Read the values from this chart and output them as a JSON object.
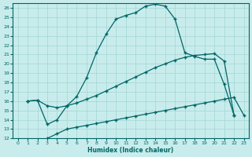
{
  "xlabel": "Humidex (Indice chaleur)",
  "ylabel": "",
  "bg_color": "#c8ecec",
  "line_color": "#006666",
  "grid_color": "#a8d8d8",
  "xlim": [
    -0.5,
    23.5
  ],
  "ylim": [
    12,
    26.5
  ],
  "xticks": [
    0,
    1,
    2,
    3,
    4,
    5,
    6,
    7,
    8,
    9,
    10,
    11,
    12,
    13,
    14,
    15,
    16,
    17,
    18,
    19,
    20,
    21,
    22,
    23
  ],
  "yticks": [
    12,
    13,
    14,
    15,
    16,
    17,
    18,
    19,
    20,
    21,
    22,
    23,
    24,
    25,
    26
  ],
  "curve1_x": [
    1,
    2,
    3,
    4,
    5,
    6,
    7,
    8,
    9,
    10,
    11,
    12,
    13,
    14,
    15,
    16,
    17,
    18,
    19,
    20,
    21,
    22
  ],
  "curve1_y": [
    16.0,
    16.1,
    13.5,
    14.0,
    15.5,
    16.5,
    18.5,
    21.2,
    23.2,
    24.8,
    25.2,
    25.5,
    26.2,
    26.4,
    26.2,
    24.8,
    21.2,
    20.8,
    20.5,
    20.5,
    17.8,
    14.5
  ],
  "curve2_x": [
    1,
    2,
    3,
    4,
    5,
    6,
    7,
    8,
    9,
    10,
    11,
    12,
    13,
    14,
    15,
    16,
    17,
    18,
    19,
    20,
    21,
    22
  ],
  "curve2_y": [
    16.0,
    16.1,
    15.5,
    15.3,
    15.5,
    15.8,
    16.2,
    16.6,
    17.1,
    17.6,
    18.1,
    18.6,
    19.1,
    19.6,
    20.0,
    20.4,
    20.7,
    20.9,
    21.0,
    21.1,
    20.3,
    14.5
  ],
  "curve3_x": [
    3,
    4,
    5,
    6,
    7,
    8,
    9,
    10,
    11,
    12,
    13,
    14,
    15,
    16,
    17,
    18,
    19,
    20,
    21,
    22,
    23
  ],
  "curve3_y": [
    12.0,
    12.5,
    13.0,
    13.2,
    13.4,
    13.6,
    13.8,
    14.0,
    14.2,
    14.4,
    14.6,
    14.8,
    15.0,
    15.2,
    15.4,
    15.6,
    15.8,
    16.0,
    16.2,
    16.4,
    14.5
  ]
}
